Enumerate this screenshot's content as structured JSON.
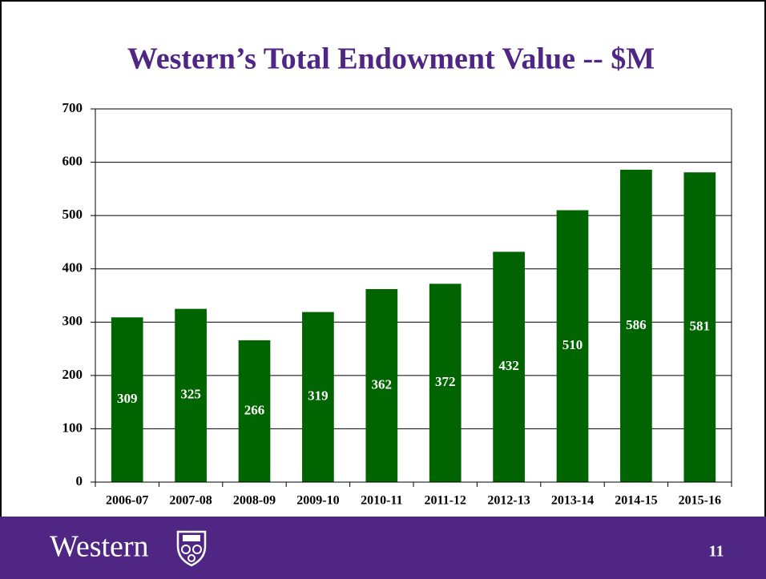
{
  "chart_data": {
    "type": "bar",
    "title": "Western’s Total Endowment Value -- $M",
    "categories": [
      "2006-07",
      "2007-08",
      "2008-09",
      "2009-10",
      "2010-11",
      "2011-12",
      "2012-13",
      "2013-14",
      "2014-15",
      "2015-16"
    ],
    "values": [
      309,
      325,
      266,
      319,
      362,
      372,
      432,
      510,
      586,
      581
    ],
    "color": "#006400",
    "ylim": [
      0,
      700
    ],
    "yticks": [
      0,
      100,
      200,
      300,
      400,
      500,
      600,
      700
    ],
    "grid": true
  },
  "footer": {
    "brand": "Western",
    "page": "11"
  }
}
